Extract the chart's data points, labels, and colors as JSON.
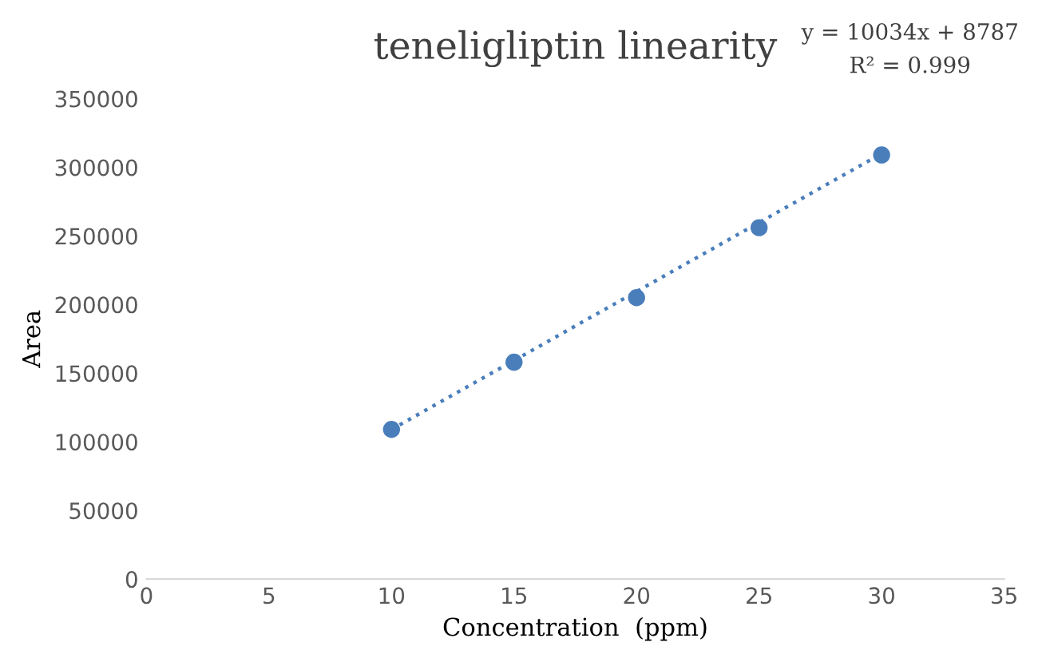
{
  "chart_data": {
    "type": "scatter",
    "title": "teneligliptin linearity",
    "xlabel": "Concentration  (ppm)",
    "ylabel": "Area",
    "annotations": [
      "y = 10034x + 8787",
      "R² = 0.999"
    ],
    "x": [
      10,
      15,
      20,
      25,
      30
    ],
    "series": [
      {
        "color": "#4a7ebb",
        "values": [
          109000,
          158000,
          205000,
          256000,
          309000
        ],
        "marker": "circle"
      },
      {
        "type": "line",
        "color": "#4a7ebb",
        "x": [
          10,
          30
        ],
        "values": [
          109000,
          310000
        ],
        "line_style": "dotted",
        "marker": "none"
      }
    ],
    "xlim": [
      0,
      35
    ],
    "xticks": [
      0,
      5,
      10,
      15,
      20,
      25,
      30,
      35
    ],
    "ylim": [
      0,
      350000
    ],
    "yticks": [
      0,
      50000,
      100000,
      150000,
      200000,
      250000,
      300000,
      350000
    ],
    "grid": false,
    "legend": false
  }
}
